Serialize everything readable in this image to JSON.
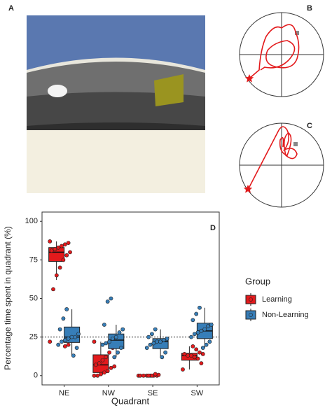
{
  "panels": {
    "a": "A",
    "b": "B",
    "c": "C",
    "d": "D"
  },
  "chart_data": {
    "type": "box",
    "y_label": "Percentage time spent in quadrant (%)",
    "x_label": "Quadrant",
    "categories": [
      "NE",
      "NW",
      "SE",
      "SW"
    ],
    "ylim": [
      -6,
      106
    ],
    "yticks": [
      0,
      25,
      50,
      75,
      100
    ],
    "reference_line": 25,
    "legend_title": "Group",
    "series": [
      {
        "name": "Learning",
        "color": "#e31a1c",
        "boxes": [
          {
            "min": 62,
            "q1": 74,
            "median": 80,
            "q3": 83,
            "max": 87
          },
          {
            "min": 0,
            "q1": 2,
            "median": 7,
            "q3": 13.5,
            "max": 22
          },
          {
            "min": 0,
            "q1": 0,
            "median": 0,
            "q3": 0.5,
            "max": 1
          },
          {
            "min": 4,
            "q1": 10,
            "median": 13,
            "q3": 14.5,
            "max": 19
          }
        ],
        "points": [
          [
            87,
            86,
            85,
            84,
            83,
            82,
            81,
            80,
            78,
            75,
            70,
            65,
            56,
            22,
            20,
            19
          ],
          [
            22,
            18,
            15,
            12,
            10,
            8,
            7,
            6,
            5,
            3,
            2,
            1,
            0,
            0
          ],
          [
            0,
            0,
            0,
            0,
            0,
            0,
            0,
            0.5,
            1,
            0,
            0
          ],
          [
            4,
            8,
            11,
            12,
            13,
            13,
            14,
            14,
            15,
            17,
            19
          ]
        ]
      },
      {
        "name": "Non-Learning",
        "color": "#377eb8",
        "boxes": [
          {
            "min": 13,
            "q1": 21.5,
            "median": 25,
            "q3": 31.5,
            "max": 43
          },
          {
            "min": 12,
            "q1": 17.5,
            "median": 23,
            "q3": 27,
            "max": 33
          },
          {
            "min": 12,
            "q1": 17.5,
            "median": 22,
            "q3": 24,
            "max": 30
          },
          {
            "min": 18,
            "q1": 24,
            "median": 29,
            "q3": 34,
            "max": 44
          }
        ],
        "points": [
          [
            43,
            37,
            30,
            27,
            25,
            25,
            24,
            23,
            22,
            20,
            18,
            13
          ],
          [
            50,
            48,
            33,
            30,
            28,
            25,
            24,
            22,
            21,
            20,
            18,
            15,
            12
          ],
          [
            30,
            27,
            25,
            24,
            23,
            22,
            22,
            21,
            20,
            18,
            15,
            12
          ],
          [
            44,
            40,
            36,
            33,
            32,
            30,
            29,
            28,
            27,
            25,
            22,
            20,
            18
          ]
        ]
      }
    ]
  }
}
